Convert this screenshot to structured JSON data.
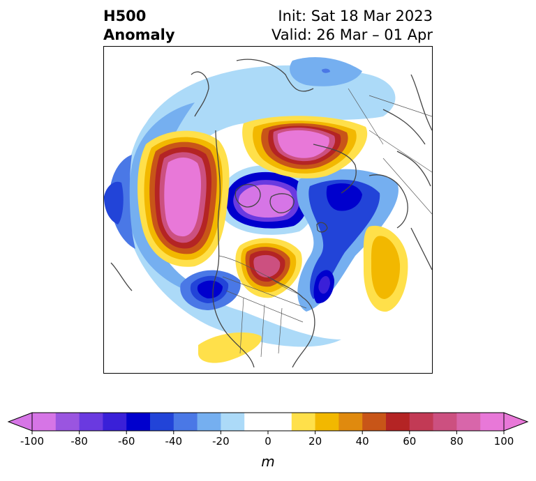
{
  "title": {
    "left_line1": "H500",
    "left_line2": "Anomaly",
    "right_line1": "Init: Sat 18 Mar 2023",
    "right_line2": "Valid: 26 Mar – 01 Apr"
  },
  "colorbar": {
    "label": "m",
    "ticks": [
      "-100",
      "-80",
      "-60",
      "-40",
      "-20",
      "0",
      "20",
      "40",
      "60",
      "80",
      "100"
    ],
    "colors": [
      "#d675e6",
      "#9a55e0",
      "#6a3ae0",
      "#3a20d8",
      "#0000cd",
      "#2244d8",
      "#4a78e6",
      "#75aff0",
      "#acdaf8",
      "#ffffff",
      "#ffffff",
      "#ffe04a",
      "#f2b800",
      "#e08a0e",
      "#c85518",
      "#b42424",
      "#c23a55",
      "#cc5080",
      "#d866aa",
      "#e878d8"
    ],
    "extend_low_color": "#d675e6",
    "extend_high_color": "#e878d8"
  }
}
